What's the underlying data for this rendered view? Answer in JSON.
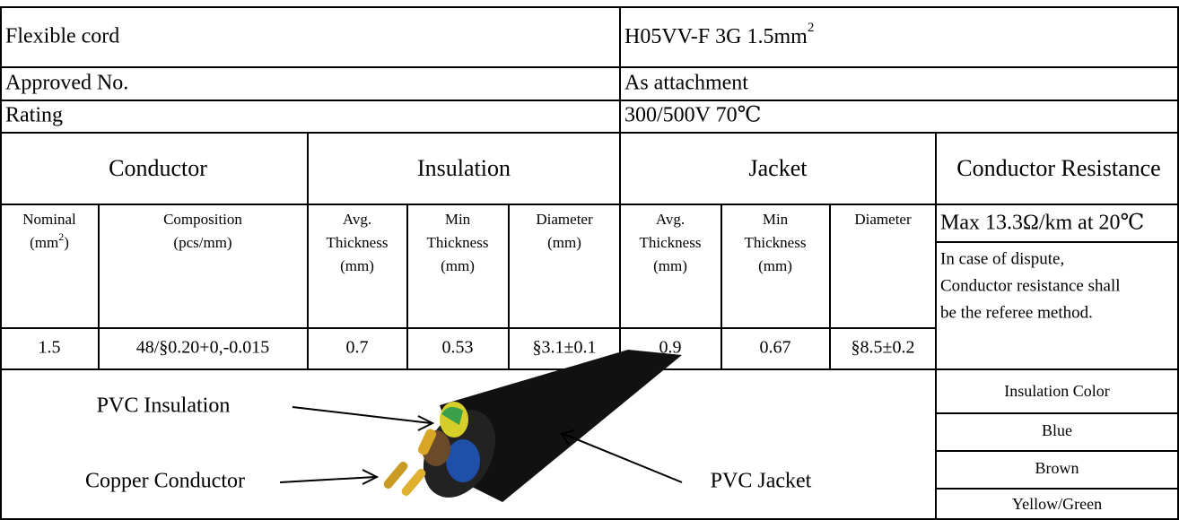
{
  "info": [
    {
      "label": "Flexible cord",
      "value": "H05VV-F 3G 1.5mm",
      "value_sup": "2"
    },
    {
      "label": "Approved No.",
      "value": "As attachment"
    },
    {
      "label": "Rating",
      "value": "300/500V  70℃"
    }
  ],
  "groups": [
    "Conductor",
    "Insulation",
    "Jacket",
    "Conductor Resistance"
  ],
  "nominal": {
    "title": "Nominal",
    "unit_open": "(mm",
    "unit_sup": "2",
    "unit_close": ")"
  },
  "columns": [
    [
      "Composition",
      "(pcs/mm)"
    ],
    [
      "Avg.",
      "Thickness",
      "(mm)"
    ],
    [
      "Min",
      "Thickness",
      "(mm)"
    ],
    [
      "Diameter",
      "(mm)"
    ],
    [
      "Avg.",
      "Thickness",
      "(mm)"
    ],
    [
      "Min",
      "Thickness",
      "(mm)"
    ],
    [
      "Diameter"
    ]
  ],
  "row": [
    "1.5",
    "48/§0.20+0,-0.015",
    "0.7",
    "0.53",
    "§3.1±0.1",
    "0.9",
    "0.67",
    "§8.5±0.2"
  ],
  "resistance": {
    "max": "Max 13.3Ω/km at 20℃",
    "note_lines": [
      "In case of dispute,",
      "Conductor resistance shall",
      "be the referee method."
    ]
  },
  "diagram_labels": [
    "PVC Insulation",
    "Copper Conductor",
    "PVC Jacket"
  ],
  "color_table": {
    "header": "Insulation Color",
    "rows": [
      "Blue",
      "Brown",
      "Yellow/Green"
    ]
  }
}
